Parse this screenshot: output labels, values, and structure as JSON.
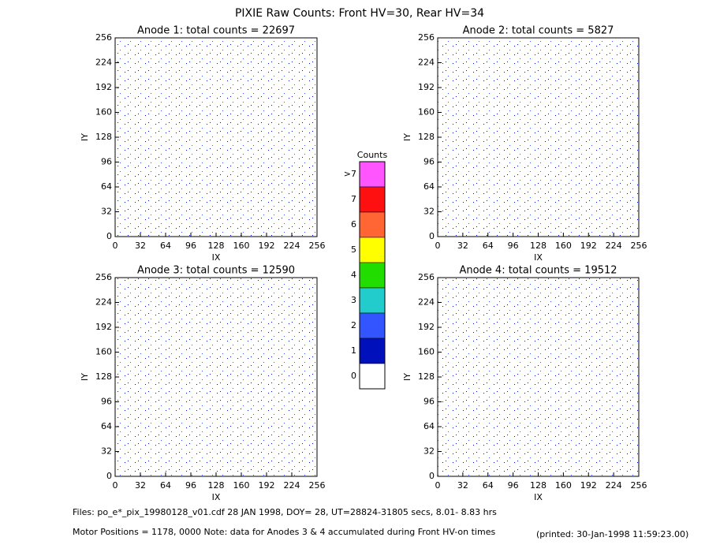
{
  "title": "PIXIE Raw Counts:  Front HV=30, Rear HV=34",
  "chart_data": [
    {
      "type": "heatmap",
      "title": "Anode 1: total counts = 22697",
      "x_label": "IX",
      "y_label": "IY",
      "xlim": [
        0,
        256
      ],
      "ylim": [
        0,
        256
      ],
      "xticks": [
        0,
        32,
        64,
        96,
        128,
        160,
        192,
        224,
        256
      ],
      "yticks": [
        0,
        32,
        64,
        96,
        128,
        160,
        192,
        224,
        256
      ]
    },
    {
      "type": "heatmap",
      "title": "Anode 2: total counts = 5827",
      "x_label": "IX",
      "y_label": "IY",
      "xlim": [
        0,
        256
      ],
      "ylim": [
        0,
        256
      ],
      "xticks": [
        0,
        32,
        64,
        96,
        128,
        160,
        192,
        224,
        256
      ],
      "yticks": [
        0,
        32,
        64,
        96,
        128,
        160,
        192,
        224,
        256
      ]
    },
    {
      "type": "heatmap",
      "title": "Anode 3: total counts = 12590",
      "x_label": "IX",
      "y_label": "IY",
      "xlim": [
        0,
        256
      ],
      "ylim": [
        0,
        256
      ],
      "xticks": [
        0,
        32,
        64,
        96,
        128,
        160,
        192,
        224,
        256
      ],
      "yticks": [
        0,
        32,
        64,
        96,
        128,
        160,
        192,
        224,
        256
      ]
    },
    {
      "type": "heatmap",
      "title": "Anode 4: total counts = 19512",
      "x_label": "IX",
      "y_label": "IY",
      "xlim": [
        0,
        256
      ],
      "ylim": [
        0,
        256
      ],
      "xticks": [
        0,
        32,
        64,
        96,
        128,
        160,
        192,
        224,
        256
      ],
      "yticks": [
        0,
        32,
        64,
        96,
        128,
        160,
        192,
        224,
        256
      ]
    }
  ],
  "colorbar": {
    "title": "Counts",
    "labels": [
      ">7",
      "7",
      "6",
      "5",
      "4",
      "3",
      "2",
      "1",
      "0"
    ],
    "colors": [
      "#ff55ff",
      "#ff1010",
      "#ff6633",
      "#ffff00",
      "#22dd00",
      "#22cccc",
      "#3355ff",
      "#0011bb",
      "#ffffff"
    ]
  },
  "footer": {
    "files": "Files: po_e*_pix_19980128_v01.cdf    28 JAN 1998, DOY= 28, UT=28824-31805 secs,  8.01- 8.83 hrs",
    "motor": "Motor Positions = 1178, 0000    Note: data for Anodes 3 & 4 accumulated during Front HV-on times",
    "printed": "(printed: 30-Jan-1998 11:59:23.00)"
  }
}
